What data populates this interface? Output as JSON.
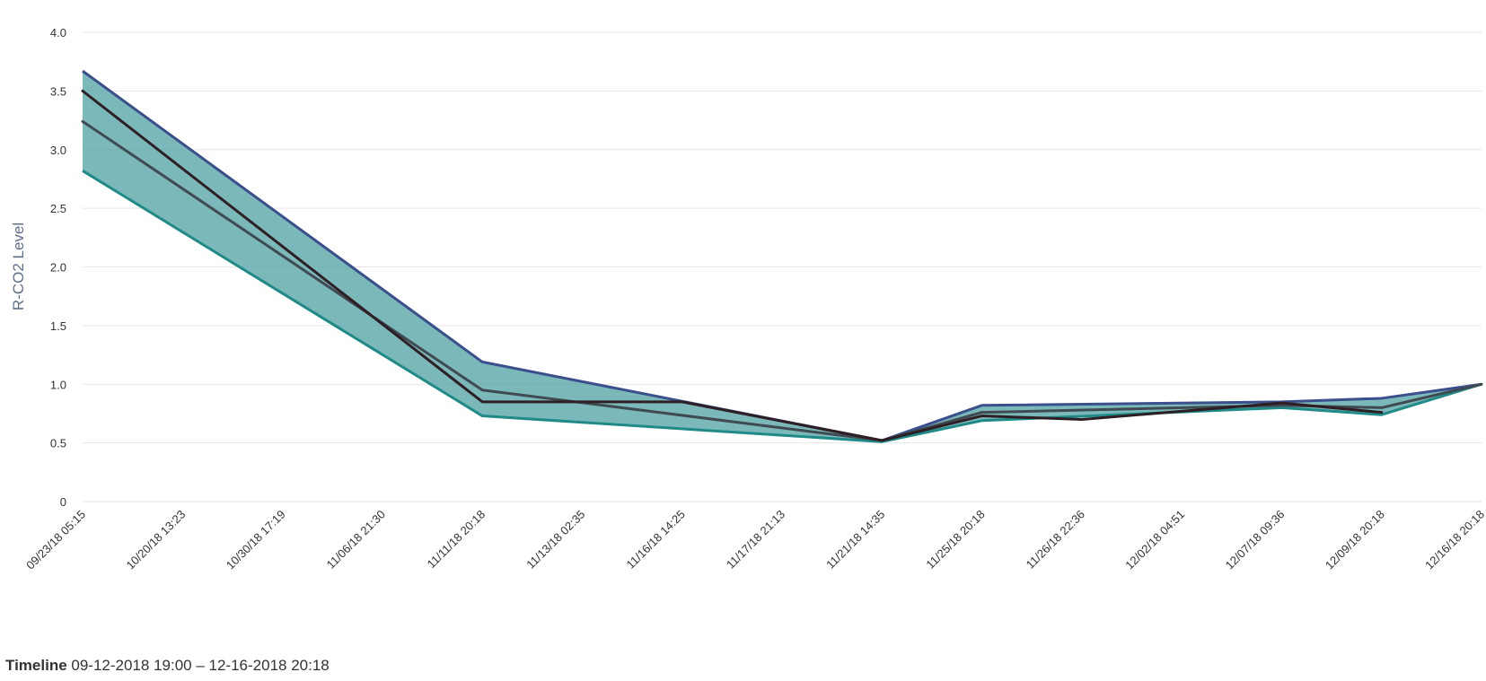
{
  "chart_data": {
    "type": "area",
    "ylabel": "R-CO2 Level",
    "ylim": [
      0,
      4
    ],
    "yticks": [
      "0",
      "0.5",
      "1.0",
      "1.5",
      "2.0",
      "2.5",
      "3.0",
      "3.5",
      "4.0"
    ],
    "ytick_values": [
      0,
      0.5,
      1.0,
      1.5,
      2.0,
      2.5,
      3.0,
      3.5,
      4.0
    ],
    "categories": [
      "09/23/18 05:15",
      "10/20/18 13:23",
      "10/30/18 17:19",
      "11/06/18 21:30",
      "11/11/18 20:18",
      "11/13/18 02:35",
      "11/16/18 14:25",
      "11/17/18 21:13",
      "11/21/18 14:35",
      "11/25/18 20:18",
      "11/26/18 22:36",
      "12/02/18 04:51",
      "12/07/18 09:36",
      "12/09/18 20:18",
      "12/16/18 20:18"
    ],
    "grid": true,
    "legend": "none",
    "range_band": {
      "upper": [
        [
          0,
          3.67
        ],
        [
          4,
          1.19
        ],
        [
          8,
          0.52
        ],
        [
          9,
          0.82
        ],
        [
          12,
          0.85
        ],
        [
          13,
          0.88
        ],
        [
          14,
          1.0
        ]
      ],
      "lower": [
        [
          0,
          2.82
        ],
        [
          4,
          0.73
        ],
        [
          8,
          0.51
        ],
        [
          9,
          0.69
        ],
        [
          12,
          0.8
        ],
        [
          13,
          0.74
        ],
        [
          14,
          1.0
        ]
      ],
      "fill_color": "#5aa6a8",
      "upper_line_color": "#3a4f8c",
      "lower_line_color": "#1f8a87"
    },
    "series": [
      {
        "values": [
          [
            0,
            3.24
          ],
          [
            4,
            0.95
          ],
          [
            8,
            0.52
          ],
          [
            9,
            0.76
          ],
          [
            12,
            0.82
          ],
          [
            13,
            0.8
          ],
          [
            14,
            1.0
          ]
        ],
        "color": "#3f4a52"
      },
      {
        "values": [
          [
            0,
            3.5
          ],
          [
            4,
            0.85
          ],
          [
            6,
            0.85
          ],
          [
            8,
            0.52
          ],
          [
            9,
            0.73
          ],
          [
            10,
            0.7
          ],
          [
            12,
            0.84
          ],
          [
            13,
            0.76
          ]
        ],
        "color": "#2e1f24"
      }
    ]
  },
  "timeline": {
    "label": "Timeline",
    "value": "09-12-2018 19:00 – 12-16-2018 20:18"
  }
}
